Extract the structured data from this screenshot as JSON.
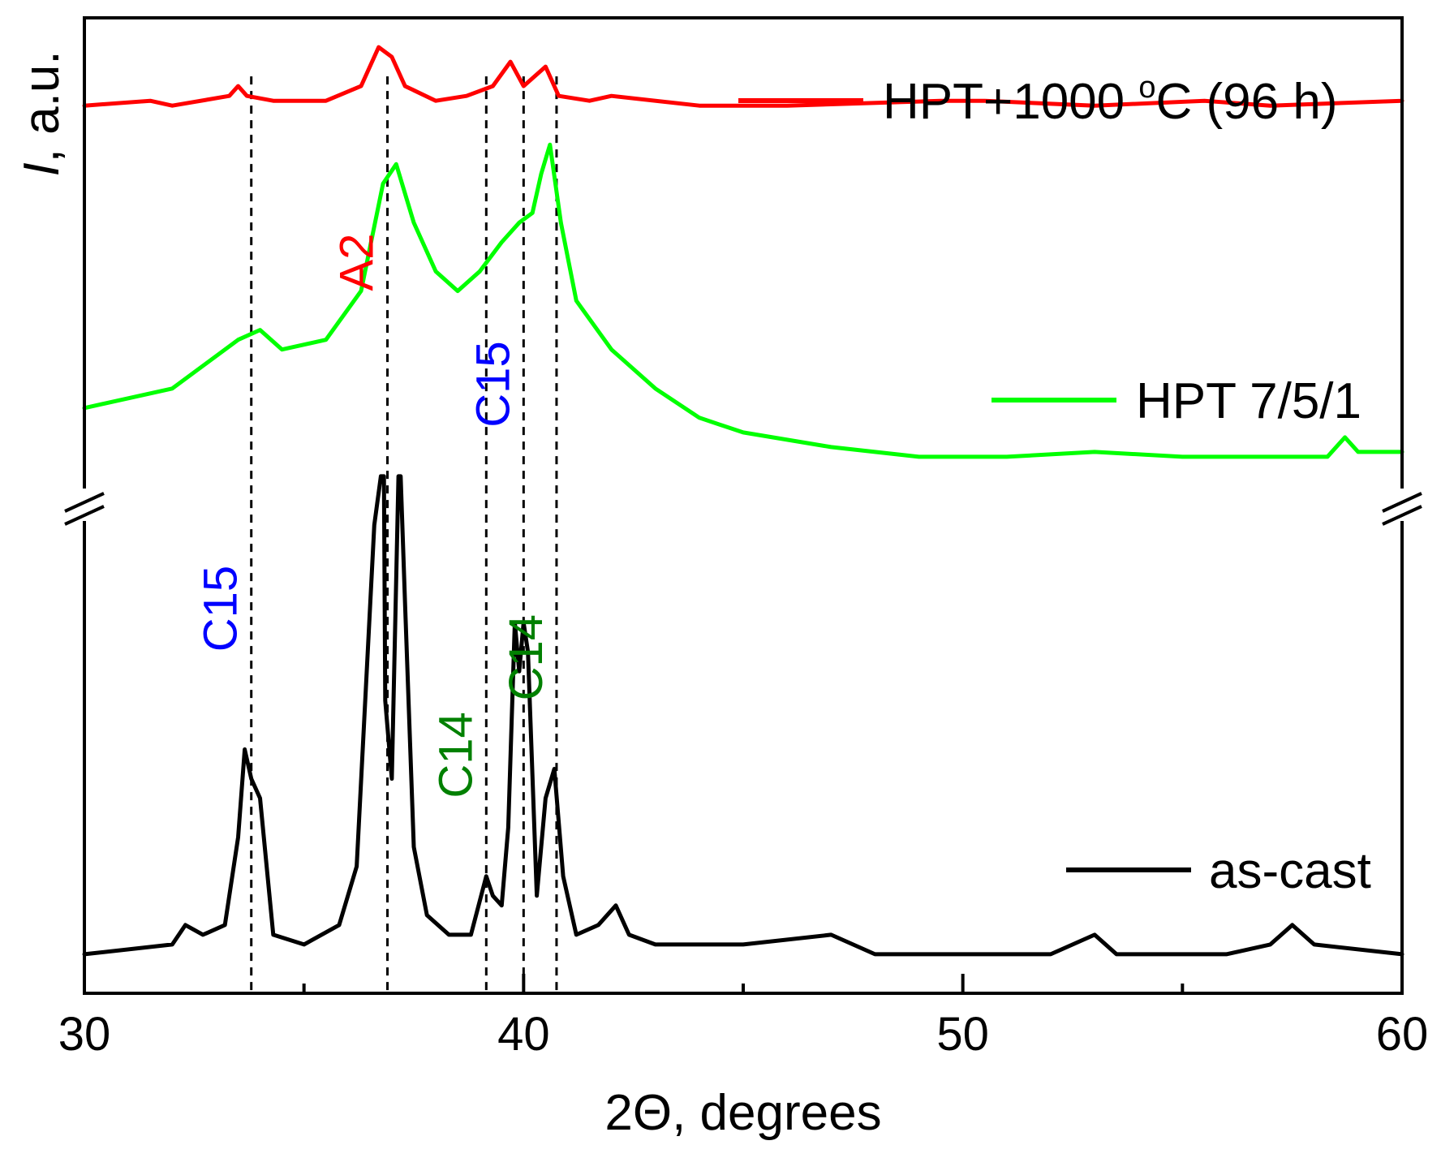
{
  "chart_data": {
    "type": "line",
    "title": "",
    "xlabel": "2Θ, degrees",
    "ylabel": {
      "italic": "I",
      "rest": ", a.u."
    },
    "xlim": [
      30,
      60
    ],
    "xticks": [
      "30",
      "40",
      "50",
      "60"
    ],
    "x_tick_values": [
      30,
      40,
      50,
      60
    ],
    "ylim": [
      0,
      100
    ],
    "yticks_visible": false,
    "axis_break": true,
    "series": [
      {
        "name": "as-cast",
        "color": "#000000",
        "points": [
          [
            30.0,
            4
          ],
          [
            32.0,
            5
          ],
          [
            32.3,
            7
          ],
          [
            32.7,
            6
          ],
          [
            33.2,
            7
          ],
          [
            33.5,
            16
          ],
          [
            33.65,
            25
          ],
          [
            33.8,
            22
          ],
          [
            34.0,
            20
          ],
          [
            34.3,
            6
          ],
          [
            35.0,
            5
          ],
          [
            35.8,
            7
          ],
          [
            36.2,
            13
          ],
          [
            36.6,
            48
          ],
          [
            36.75,
            53
          ],
          [
            36.82,
            53
          ],
          [
            36.85,
            30
          ],
          [
            37.0,
            22
          ],
          [
            37.15,
            53
          ],
          [
            37.2,
            53
          ],
          [
            37.3,
            40
          ],
          [
            37.5,
            15
          ],
          [
            37.8,
            8
          ],
          [
            38.3,
            6
          ],
          [
            38.8,
            6
          ],
          [
            39.15,
            12
          ],
          [
            39.3,
            10
          ],
          [
            39.5,
            9
          ],
          [
            39.65,
            17
          ],
          [
            39.8,
            38
          ],
          [
            39.9,
            33
          ],
          [
            40.0,
            38
          ],
          [
            40.1,
            35
          ],
          [
            40.3,
            10
          ],
          [
            40.5,
            20
          ],
          [
            40.7,
            23
          ],
          [
            40.9,
            12
          ],
          [
            41.2,
            6
          ],
          [
            41.7,
            7
          ],
          [
            42.1,
            9
          ],
          [
            42.4,
            6
          ],
          [
            43.0,
            5
          ],
          [
            45.0,
            5
          ],
          [
            47.0,
            6
          ],
          [
            48.0,
            4
          ],
          [
            50.0,
            4
          ],
          [
            52.0,
            4
          ],
          [
            53.0,
            6
          ],
          [
            53.5,
            4
          ],
          [
            56.0,
            4
          ],
          [
            57.0,
            5
          ],
          [
            57.5,
            7
          ],
          [
            58.0,
            5
          ],
          [
            60.0,
            4
          ]
        ]
      },
      {
        "name": "HPT 7/5/1",
        "color": "#00ff00",
        "points": [
          [
            30.0,
            60
          ],
          [
            32.0,
            62
          ],
          [
            33.5,
            67
          ],
          [
            34.0,
            68
          ],
          [
            34.5,
            66
          ],
          [
            35.5,
            67
          ],
          [
            36.3,
            72
          ],
          [
            36.8,
            83
          ],
          [
            37.1,
            85
          ],
          [
            37.5,
            79
          ],
          [
            38.0,
            74
          ],
          [
            38.5,
            72
          ],
          [
            39.0,
            74
          ],
          [
            39.5,
            77
          ],
          [
            39.9,
            79
          ],
          [
            40.2,
            80
          ],
          [
            40.4,
            84
          ],
          [
            40.6,
            87
          ],
          [
            40.85,
            79
          ],
          [
            41.2,
            71
          ],
          [
            42.0,
            66
          ],
          [
            43.0,
            62
          ],
          [
            44.0,
            59
          ],
          [
            45.0,
            57.5
          ],
          [
            47.0,
            56
          ],
          [
            49.0,
            55
          ],
          [
            51.0,
            55
          ],
          [
            53.0,
            55.5
          ],
          [
            55.0,
            55
          ],
          [
            57.0,
            55
          ],
          [
            58.3,
            55
          ],
          [
            58.7,
            57
          ],
          [
            59.0,
            55.5
          ],
          [
            60.0,
            55.5
          ]
        ]
      },
      {
        "name": "HPT+1000 °C (96 h)",
        "color": "#ff0000",
        "points": [
          [
            30.0,
            91
          ],
          [
            31.5,
            91.5
          ],
          [
            32.0,
            91
          ],
          [
            33.3,
            92
          ],
          [
            33.5,
            93
          ],
          [
            33.7,
            92
          ],
          [
            34.3,
            91.5
          ],
          [
            35.5,
            91.5
          ],
          [
            36.3,
            93
          ],
          [
            36.7,
            97
          ],
          [
            37.0,
            96
          ],
          [
            37.3,
            93
          ],
          [
            38.0,
            91.5
          ],
          [
            38.7,
            92
          ],
          [
            39.3,
            93
          ],
          [
            39.7,
            95.5
          ],
          [
            40.0,
            93
          ],
          [
            40.5,
            95
          ],
          [
            40.8,
            92
          ],
          [
            41.5,
            91.5
          ],
          [
            42.0,
            92
          ],
          [
            44.0,
            91
          ],
          [
            46.0,
            91
          ],
          [
            49.5,
            91.5
          ],
          [
            50.5,
            91.5
          ],
          [
            53.0,
            91
          ],
          [
            55.5,
            91.5
          ],
          [
            57.0,
            91
          ],
          [
            60.0,
            91.5
          ]
        ]
      }
    ],
    "legend": [
      {
        "label": "HPT+1000 °C (96 h)",
        "color": "#ff0000"
      },
      {
        "label": "HPT 7/5/1",
        "color": "#00ff00"
      },
      {
        "label": "as-cast",
        "color": "#000000"
      }
    ],
    "legend_text": {
      "red_prefix": "HPT+1000 ",
      "red_deg": "o",
      "red_suffix": "C (96 h)"
    },
    "reference_lines_x": [
      33.8,
      36.9,
      39.15,
      40.0,
      40.75
    ],
    "annotations": [
      {
        "text": "C15",
        "x": 33.8,
        "color": "#0000ff"
      },
      {
        "text": "A2",
        "x": 36.9,
        "color": "#ff0000"
      },
      {
        "text": "C14",
        "x": 39.15,
        "color": "#008000"
      },
      {
        "text": "C15",
        "x": 40.0,
        "color": "#0000ff"
      },
      {
        "text": "C14",
        "x": 40.75,
        "color": "#008000"
      }
    ]
  }
}
